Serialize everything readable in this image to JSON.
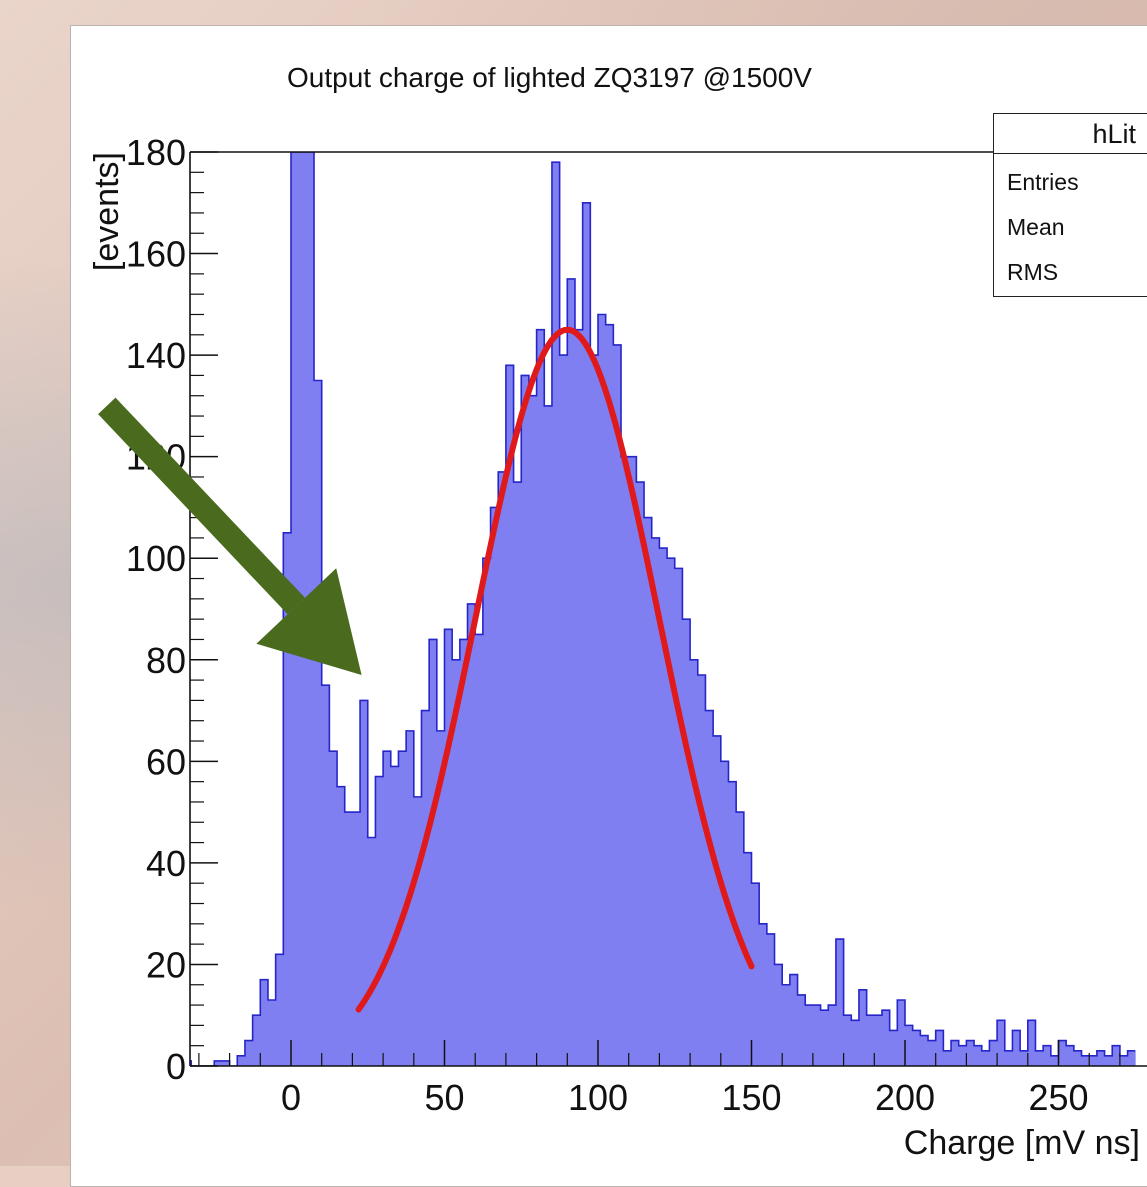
{
  "chart_data": {
    "type": "bar",
    "title": "Output charge of lighted ZQ3197  @1500V",
    "xlabel": "Charge [mV ns]",
    "ylabel": "[events]",
    "xlim": [
      -35,
      275
    ],
    "ylim": [
      0,
      180
    ],
    "x_ticks": [
      0,
      50,
      100,
      150,
      200,
      250
    ],
    "y_ticks": [
      0,
      20,
      40,
      60,
      80,
      100,
      120,
      140,
      160,
      180
    ],
    "grid": false,
    "bin_width": 2.5,
    "bins": [
      [
        -35,
        1
      ],
      [
        -32.5,
        0
      ],
      [
        -30,
        0
      ],
      [
        -27.5,
        0
      ],
      [
        -25,
        1
      ],
      [
        -22.5,
        1
      ],
      [
        -20,
        0
      ],
      [
        -17.5,
        2
      ],
      [
        -15,
        5
      ],
      [
        -12.5,
        10
      ],
      [
        -10,
        17
      ],
      [
        -7.5,
        13
      ],
      [
        -5,
        22
      ],
      [
        -2.5,
        105
      ],
      [
        0,
        180
      ],
      [
        2.5,
        180
      ],
      [
        5,
        180
      ],
      [
        7.5,
        135
      ],
      [
        10,
        75
      ],
      [
        12.5,
        62
      ],
      [
        15,
        55
      ],
      [
        17.5,
        50
      ],
      [
        20,
        50
      ],
      [
        22.5,
        72
      ],
      [
        25,
        45
      ],
      [
        27.5,
        57
      ],
      [
        30,
        62
      ],
      [
        32.5,
        59
      ],
      [
        35,
        62
      ],
      [
        37.5,
        66
      ],
      [
        40,
        53
      ],
      [
        42.5,
        70
      ],
      [
        45,
        84
      ],
      [
        47.5,
        66
      ],
      [
        50,
        86
      ],
      [
        52.5,
        80
      ],
      [
        55,
        84
      ],
      [
        57.5,
        91
      ],
      [
        60,
        85
      ],
      [
        62.5,
        100
      ],
      [
        65,
        110
      ],
      [
        67.5,
        117
      ],
      [
        70,
        138
      ],
      [
        72.5,
        115
      ],
      [
        75,
        136
      ],
      [
        77.5,
        132
      ],
      [
        80,
        145
      ],
      [
        82.5,
        130
      ],
      [
        85,
        178
      ],
      [
        87.5,
        140
      ],
      [
        90,
        155
      ],
      [
        92.5,
        145
      ],
      [
        95,
        170
      ],
      [
        97.5,
        140
      ],
      [
        100,
        148
      ],
      [
        102.5,
        146
      ],
      [
        105,
        142
      ],
      [
        107.5,
        120
      ],
      [
        110,
        120
      ],
      [
        112.5,
        115
      ],
      [
        115,
        108
      ],
      [
        117.5,
        104
      ],
      [
        120,
        102
      ],
      [
        122.5,
        100
      ],
      [
        125,
        98
      ],
      [
        127.5,
        88
      ],
      [
        130,
        80
      ],
      [
        132.5,
        77
      ],
      [
        135,
        70
      ],
      [
        137.5,
        65
      ],
      [
        140,
        60
      ],
      [
        142.5,
        56
      ],
      [
        145,
        50
      ],
      [
        147.5,
        42
      ],
      [
        150,
        36
      ],
      [
        152.5,
        28
      ],
      [
        155,
        26
      ],
      [
        157.5,
        20
      ],
      [
        160,
        16
      ],
      [
        162.5,
        18
      ],
      [
        165,
        14
      ],
      [
        167.5,
        12
      ],
      [
        170,
        12
      ],
      [
        172.5,
        11
      ],
      [
        175,
        12
      ],
      [
        177.5,
        25
      ],
      [
        180,
        10
      ],
      [
        182.5,
        9
      ],
      [
        185,
        15
      ],
      [
        187.5,
        10
      ],
      [
        190,
        10
      ],
      [
        192.5,
        11
      ],
      [
        195,
        7
      ],
      [
        197.5,
        13
      ],
      [
        200,
        8
      ],
      [
        202.5,
        7
      ],
      [
        205,
        6
      ],
      [
        207.5,
        5
      ],
      [
        210,
        7
      ],
      [
        212.5,
        3
      ],
      [
        215,
        5
      ],
      [
        217.5,
        4
      ],
      [
        220,
        5
      ],
      [
        222.5,
        4
      ],
      [
        225,
        3
      ],
      [
        227.5,
        5
      ],
      [
        230,
        9
      ],
      [
        232.5,
        3
      ],
      [
        235,
        7
      ],
      [
        237.5,
        3
      ],
      [
        240,
        9
      ],
      [
        242.5,
        3
      ],
      [
        245,
        4
      ],
      [
        247.5,
        2
      ],
      [
        250,
        5
      ],
      [
        252.5,
        4
      ],
      [
        255,
        3
      ],
      [
        257.5,
        2
      ],
      [
        260,
        2
      ],
      [
        262.5,
        3
      ],
      [
        265,
        2
      ],
      [
        267.5,
        4
      ],
      [
        270,
        2
      ],
      [
        272.5,
        3
      ]
    ],
    "fit": {
      "type": "gaussian",
      "amplitude": 145,
      "mean": 90,
      "sigma": 30,
      "x_range": [
        22,
        150
      ]
    },
    "stats_box": {
      "name": "hLit",
      "rows": [
        "Entries",
        "Mean",
        "RMS"
      ]
    },
    "annotation_arrow": {
      "from": [
        -60,
        130
      ],
      "to": [
        23,
        77
      ]
    },
    "colors": {
      "fill": "#7f7ff2",
      "edge": "#2626c8",
      "fit": "#e01a1a",
      "arrow": "#4a6b1e",
      "axis": "#111111"
    }
  }
}
